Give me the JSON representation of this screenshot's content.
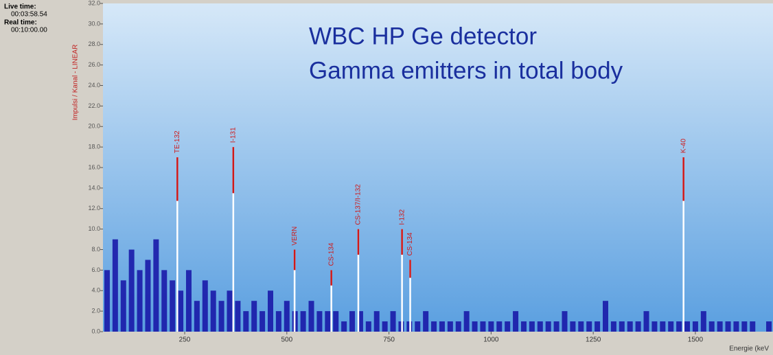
{
  "status": {
    "live_time_label": "Live time:",
    "live_time": "00:03:58.54",
    "real_time_label": "Real time:",
    "real_time": "00:10:00.00"
  },
  "chart_data": {
    "type": "spectrum",
    "title": "WBC HP Ge detector",
    "subtitle": "Gamma emitters in total body",
    "y_label": "Impulsi / Kanal - LINEAR",
    "x_label": "Energie (keV",
    "xlim": [
      50,
      1690
    ],
    "ylim": [
      0,
      32
    ],
    "xticks": [
      250,
      500,
      750,
      1000,
      1250,
      1500
    ],
    "yticks": [
      {
        "value": 0,
        "label": "0.0"
      },
      {
        "value": 2,
        "label": "2.0"
      },
      {
        "value": 4,
        "label": "4.0"
      },
      {
        "value": 6,
        "label": "6.0"
      },
      {
        "value": 8,
        "label": "8.0"
      },
      {
        "value": 10,
        "label": "10.0"
      },
      {
        "value": 12,
        "label": "12.0"
      },
      {
        "value": 14,
        "label": "14.0"
      },
      {
        "value": 16,
        "label": "16.0"
      },
      {
        "value": 18,
        "label": "18.0"
      },
      {
        "value": 20,
        "label": "20.0"
      },
      {
        "value": 22,
        "label": "22.0"
      },
      {
        "value": 24,
        "label": "24.0"
      },
      {
        "value": 26,
        "label": "26.0"
      },
      {
        "value": 28,
        "label": "28.0"
      },
      {
        "value": 30,
        "label": "30.0"
      },
      {
        "value": 32,
        "label": "32.0"
      }
    ],
    "background": {
      "color": "#1a1aa8",
      "x": [
        60,
        80,
        100,
        120,
        140,
        160,
        180,
        200,
        220,
        240,
        260,
        280,
        300,
        320,
        340,
        360,
        380,
        400,
        420,
        440,
        460,
        480,
        500,
        520,
        540,
        560,
        580,
        600,
        620,
        640,
        660,
        680,
        700,
        720,
        740,
        760,
        780,
        800,
        820,
        840,
        860,
        880,
        900,
        920,
        940,
        960,
        980,
        1000,
        1020,
        1040,
        1060,
        1080,
        1100,
        1120,
        1140,
        1160,
        1180,
        1200,
        1220,
        1240,
        1260,
        1280,
        1300,
        1320,
        1340,
        1360,
        1380,
        1400,
        1420,
        1440,
        1460,
        1480,
        1500,
        1520,
        1540,
        1560,
        1580,
        1600,
        1620,
        1640,
        1660,
        1680
      ],
      "values": [
        6,
        9,
        5,
        8,
        6,
        7,
        9,
        6,
        5,
        4,
        6,
        3,
        5,
        4,
        3,
        4,
        3,
        2,
        3,
        2,
        4,
        2,
        3,
        2,
        2,
        3,
        2,
        2,
        2,
        1,
        2,
        2,
        1,
        2,
        1,
        2,
        1,
        1,
        1,
        2,
        1,
        1,
        1,
        1,
        2,
        1,
        1,
        1,
        1,
        1,
        2,
        1,
        1,
        1,
        1,
        1,
        2,
        1,
        1,
        1,
        1,
        3,
        1,
        1,
        1,
        1,
        2,
        1,
        1,
        1,
        1,
        1,
        1,
        2,
        1,
        1,
        1,
        1,
        1,
        1,
        0,
        1
      ]
    },
    "peak_color": "#d01818",
    "peaks": [
      {
        "label": "TE-132",
        "x": 232,
        "value": 17
      },
      {
        "label": "I-131",
        "x": 369,
        "value": 18
      },
      {
        "label": "VERN",
        "x": 519,
        "value": 8
      },
      {
        "label": "CS-134",
        "x": 609,
        "value": 6
      },
      {
        "label": "CS-137/I-132",
        "x": 675,
        "value": 10
      },
      {
        "label": "I-132",
        "x": 782,
        "value": 10
      },
      {
        "label": "CS-134",
        "x": 802,
        "value": 7
      },
      {
        "label": "K-40",
        "x": 1471,
        "value": 17
      }
    ]
  }
}
